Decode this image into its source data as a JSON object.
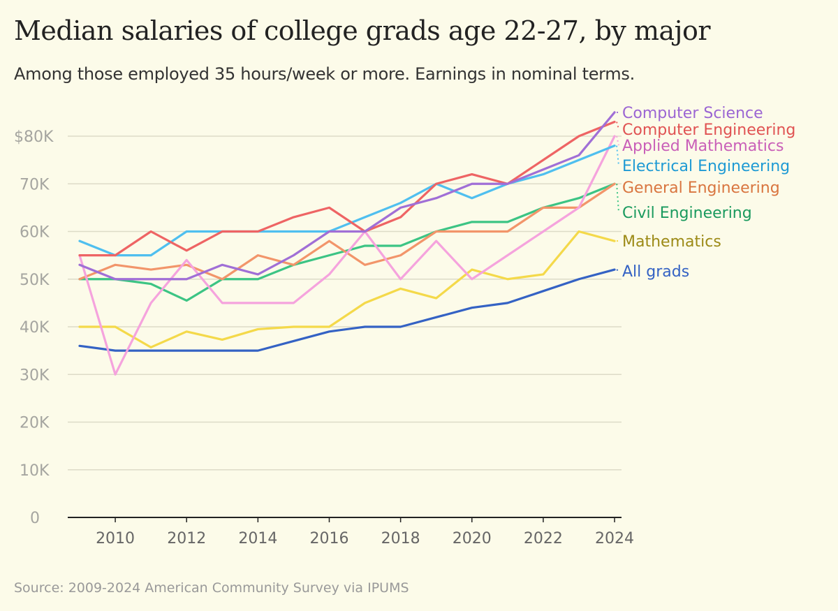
{
  "chart_data": {
    "type": "line",
    "title": "Median salaries of college grads age 22-27, by major",
    "subtitle": "Among those employed 35 hours/week or more. Earnings in nominal terms.",
    "source": "Source: 2009-2024 American Community Survey via IPUMS",
    "xlabel": "",
    "ylabel": "",
    "x": [
      2009,
      2010,
      2011,
      2012,
      2013,
      2014,
      2015,
      2016,
      2017,
      2018,
      2019,
      2020,
      2021,
      2022,
      2023,
      2024
    ],
    "xticks": [
      "2010",
      "2012",
      "2014",
      "2016",
      "2018",
      "2020",
      "2022",
      "2024"
    ],
    "yticks": [
      "0",
      "10K",
      "20K",
      "30K",
      "40K",
      "50K",
      "60K",
      "70K",
      "$80K"
    ],
    "ylim": [
      0,
      85000
    ],
    "grid": true,
    "legend": "direct labels at right",
    "series": [
      {
        "name": "Computer Science",
        "color": "#a06fd6",
        "label_color": "#9b65d3",
        "values": [
          53000,
          50000,
          50000,
          50000,
          53000,
          51000,
          55000,
          60000,
          60000,
          65000,
          67000,
          70000,
          70000,
          73000,
          76000,
          85000
        ]
      },
      {
        "name": "Computer Engineering",
        "color": "#ee6464",
        "label_color": "#e05252",
        "values": [
          55000,
          55000,
          60000,
          56000,
          60000,
          60000,
          63000,
          65000,
          60000,
          63000,
          70000,
          72000,
          70000,
          75000,
          80000,
          83000
        ]
      },
      {
        "name": "Applied Mathematics",
        "color": "#f5a3dd",
        "label_color": "#c95fb8",
        "values": [
          55000,
          30000,
          45000,
          54000,
          45000,
          45000,
          45000,
          51000,
          60000,
          50000,
          58000,
          50000,
          55000,
          60000,
          65000,
          80000
        ]
      },
      {
        "name": "Electrical Engineering",
        "color": "#4fbfef",
        "label_color": "#1e9ad4",
        "values": [
          58000,
          55000,
          55000,
          60000,
          60000,
          60000,
          60000,
          60000,
          63000,
          66000,
          70000,
          67000,
          70000,
          72000,
          75000,
          78000
        ]
      },
      {
        "name": "General Engineering",
        "color": "#f2956a",
        "label_color": "#d9753f",
        "values": [
          50000,
          53000,
          52000,
          53000,
          50000,
          55000,
          53000,
          58000,
          53000,
          55000,
          60000,
          60000,
          60000,
          65000,
          65000,
          70000
        ]
      },
      {
        "name": "Civil Engineering",
        "color": "#3cc484",
        "label_color": "#1a9a5e",
        "values": [
          50000,
          50000,
          49000,
          45500,
          50000,
          50000,
          53000,
          55000,
          57000,
          57000,
          60000,
          62000,
          62000,
          65000,
          67000,
          70000
        ]
      },
      {
        "name": "Mathematics",
        "color": "#f4d94a",
        "label_color": "#9c8a16",
        "values": [
          40000,
          40000,
          35700,
          39000,
          37300,
          39500,
          40000,
          40000,
          45000,
          48000,
          46000,
          52000,
          50000,
          51000,
          60000,
          58000
        ]
      },
      {
        "name": "All grads",
        "color": "#3462c4",
        "label_color": "#3462c4",
        "values": [
          36000,
          35000,
          35000,
          35000,
          35000,
          35000,
          37000,
          39000,
          40000,
          40000,
          42000,
          44000,
          45000,
          47500,
          50000,
          52000
        ]
      }
    ]
  }
}
